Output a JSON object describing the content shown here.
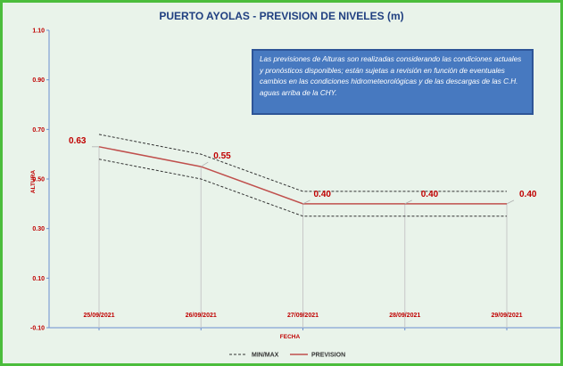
{
  "chart_data": {
    "type": "line",
    "title": "PUERTO AYOLAS - PREVISION DE NIVELES (m)",
    "xlabel": "FECHA",
    "ylabel": "ALTURA",
    "ylim": [
      -0.1,
      1.1
    ],
    "yticks": [
      "-0.10",
      "0.10",
      "0.30",
      "0.50",
      "0.70",
      "0.90",
      "1.10"
    ],
    "categories": [
      "25/09/2021",
      "26/09/2021",
      "27/09/2021",
      "28/09/2021",
      "29/09/2021"
    ],
    "series": [
      {
        "name": "PREVISION",
        "values": [
          0.63,
          0.55,
          0.4,
          0.4,
          0.4
        ],
        "labels": [
          "0.63",
          "0.55",
          "0.40",
          "0.40",
          "0.40"
        ],
        "color": "#c0504d"
      },
      {
        "name": "MIN/MAX",
        "role": "max",
        "values": [
          0.68,
          0.6,
          0.45,
          0.45,
          0.45
        ],
        "color": "#333333"
      },
      {
        "name": "MIN/MAX",
        "role": "min",
        "values": [
          0.58,
          0.5,
          0.35,
          0.35,
          0.35
        ],
        "color": "#333333"
      }
    ],
    "legend": {
      "position": "bottom",
      "entries": [
        "MIN/MAX",
        "PREVISION"
      ]
    },
    "grid": {
      "vertical": true,
      "horizontal": false
    },
    "note": "Las previsiones de Alturas son realizadas considerando las condiciones actuales y pronósticos disponibles;  están sujetas a revisión en función de eventuales cambios en las condiciones hidrometeorológicas y de las descargas de las C.H. aguas arriba de la CHY."
  }
}
